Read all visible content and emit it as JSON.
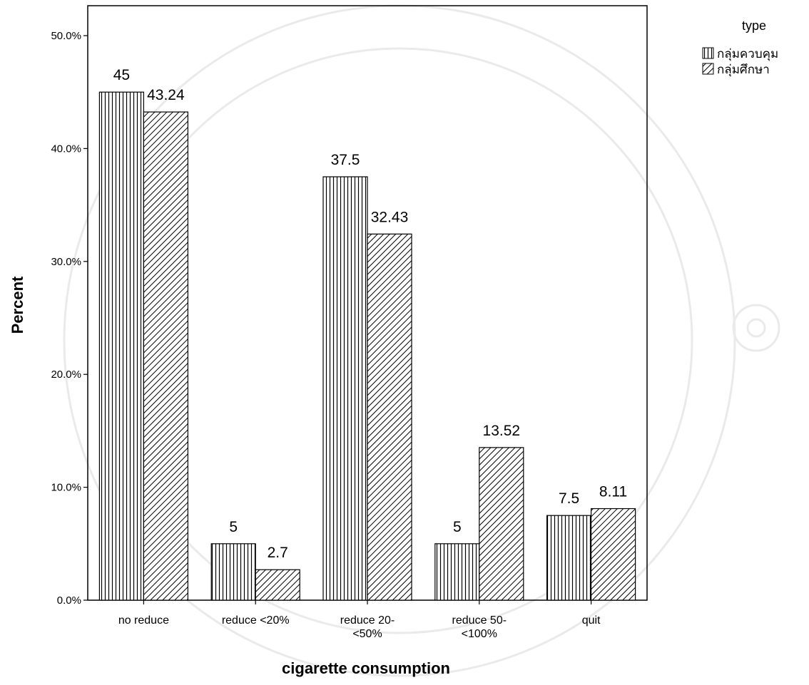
{
  "chart_data": {
    "type": "bar",
    "categories": [
      "no reduce",
      "reduce <20%",
      "reduce 20-\n<50%",
      "reduce 50-\n<100%",
      "quit"
    ],
    "series": [
      {
        "name": "กลุ่มควบคุม",
        "values": [
          45,
          5,
          37.5,
          5,
          7.5
        ],
        "labels": [
          "45",
          "5",
          "37.5",
          "5",
          "7.5"
        ],
        "pattern": "vertical"
      },
      {
        "name": "กลุ่มศึกษา",
        "values": [
          43.24,
          2.7,
          32.43,
          13.52,
          8.11
        ],
        "labels": [
          "43.24",
          "2.7",
          "32.43",
          "13.52",
          "8.11"
        ],
        "pattern": "diagonal"
      }
    ],
    "ylim": [
      0,
      50
    ],
    "yticks": [
      "0.0%",
      "10.0%",
      "20.0%",
      "30.0%",
      "40.0%",
      "50.0%"
    ],
    "ylabel": "Percent",
    "xlabel": "cigarette consumption",
    "legend": {
      "title": "type",
      "placement": "top-right outside"
    },
    "grid": false,
    "colors": {
      "bar_fill": "#ffffff",
      "stroke": "#000000"
    }
  }
}
